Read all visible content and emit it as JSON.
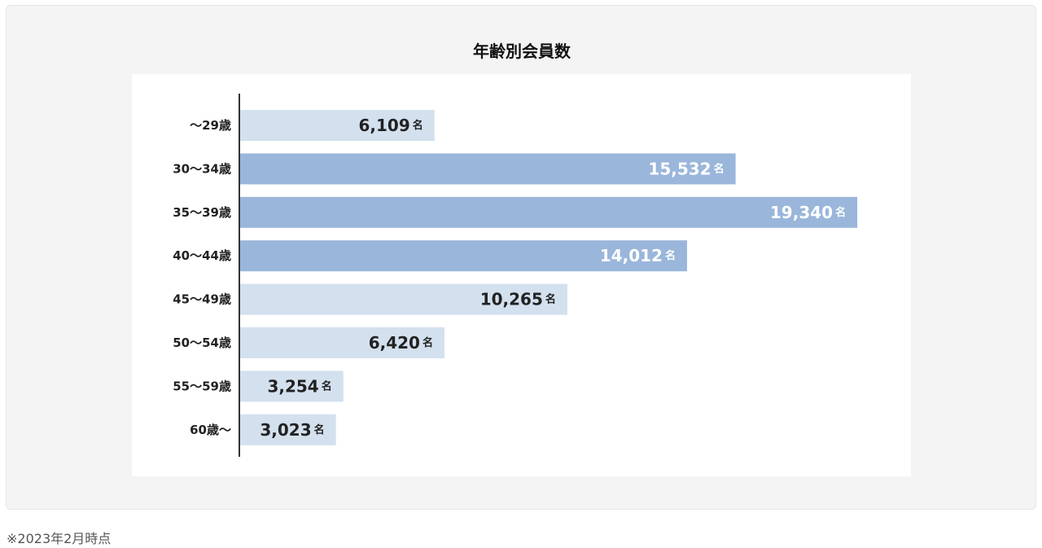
{
  "footnote": "※2023年2月時点",
  "colors": {
    "bar_light": "#d3e0ee",
    "bar_highlight": "#9ab6da",
    "label_dark": "#222222",
    "label_light": "#ffffff",
    "axis": "#333333",
    "panel_bg": "#f4f4f4"
  },
  "chart_data": {
    "type": "bar",
    "orientation": "horizontal",
    "title": "年齢別会員数",
    "unit": "名",
    "categories": [
      "～29歳",
      "30～34歳",
      "35～39歳",
      "40～44歳",
      "45～49歳",
      "50～54歳",
      "55～59歳",
      "60歳～"
    ],
    "values": [
      6109,
      15532,
      19340,
      14012,
      10265,
      6420,
      3254,
      3023
    ],
    "value_labels": [
      "6,109",
      "15,532",
      "19,340",
      "14,012",
      "10,265",
      "6,420",
      "3,254",
      "3,023"
    ],
    "highlighted": [
      false,
      true,
      true,
      true,
      false,
      false,
      false,
      false
    ],
    "xlim": [
      0,
      20000
    ],
    "grid": false,
    "legend": "none"
  }
}
